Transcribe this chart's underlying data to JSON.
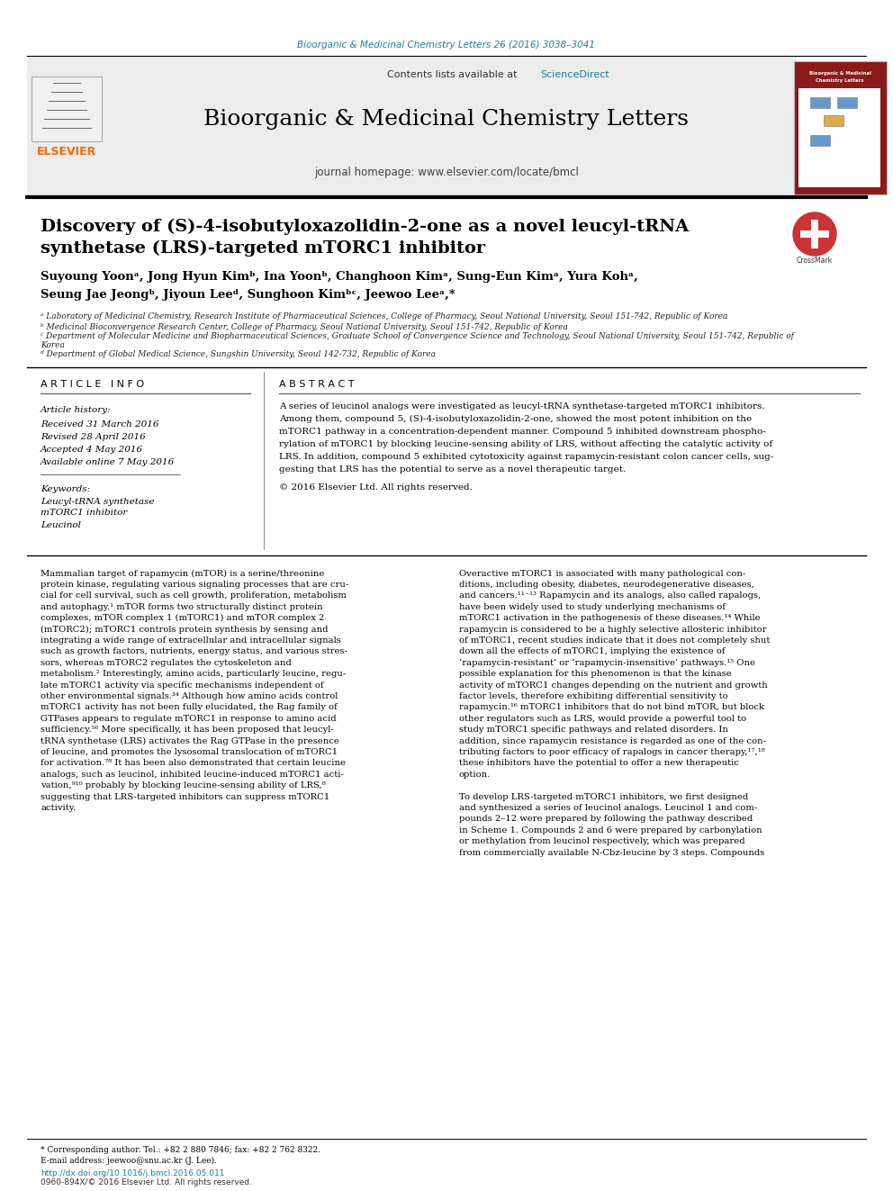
{
  "page_bg": "#ffffff",
  "top_journal_line": "Bioorganic & Medicinal Chemistry Letters 26 (2016) 3038–3041",
  "top_line_color": "#1a7fa0",
  "header_bg": "#ececec",
  "contents_line": "Contents lists available at",
  "sciencedirect_text": "ScienceDirect",
  "sciencedirect_color": "#1a7fa0",
  "journal_title": "Bioorganic & Medicinal Chemistry Letters",
  "journal_homepage": "journal homepage: www.elsevier.com/locate/bmcl",
  "elsevier_color": "#ff6600",
  "elsevier_text": "ELSEVIER",
  "paper_title_line1": "Discovery of (S)-4-isobutyloxazolidin-2-one as a novel leucyl-tRNA",
  "paper_title_line2": "synthetase (LRS)-targeted mTORC1 inhibitor",
  "authors_line1": "Suyoung Yoonᵃ, Jong Hyun Kimᵇ, Ina Yoonᵇ, Changhoon Kimᵃ, Sung-Eun Kimᵃ, Yura Kohᵃ,",
  "authors_line2": "Seung Jae Jeongᵇ, Jiyoun Leeᵈ, Sunghoon Kimᵇᶜ, Jeewoo Leeᵃ,*",
  "affil_a": "ᵃ Laboratory of Medicinal Chemistry, Research Institute of Pharmaceutical Sciences, College of Pharmacy, Seoul National University, Seoul 151-742, Republic of Korea",
  "affil_b": "ᵇ Medicinal Bioconvergence Research Center, College of Pharmacy, Seoul National University, Seoul 151-742, Republic of Korea",
  "affil_c1": "ᶜ Department of Molecular Medicine and Biopharmaceutical Sciences, Graduate School of Convergence Science and Technology, Seoul National University, Seoul 151-742, Republic of",
  "affil_c2": "Korea",
  "affil_d": "ᵈ Department of Global Medical Science, Sungshin University, Seoul 142-732, Republic of Korea",
  "article_info_title": "A R T I C L E   I N F O",
  "abstract_title": "A B S T R A C T",
  "article_history_label": "Article history:",
  "received": "Received 31 March 2016",
  "revised": "Revised 28 April 2016",
  "accepted": "Accepted 4 May 2016",
  "available": "Available online 7 May 2016",
  "keywords_label": "Keywords:",
  "keyword1": "Leucyl-tRNA synthetase",
  "keyword2": "mTORC1 inhibitor",
  "keyword3": "Leucinol",
  "abstract_lines": [
    "A series of leucinol analogs were investigated as leucyl-tRNA synthetase-targeted mTORC1 inhibitors.",
    "Among them, compound 5, (S)-4-isobutyloxazolidin-2-one, showed the most potent inhibition on the",
    "mTORC1 pathway in a concentration-dependent manner. Compound 5 inhibited downstream phospho-",
    "rylation of mTORC1 by blocking leucine-sensing ability of LRS, without affecting the catalytic activity of",
    "LRS. In addition, compound 5 exhibited cytotoxicity against rapamycin-resistant colon cancer cells, sug-",
    "gesting that LRS has the potential to serve as a novel therapeutic target."
  ],
  "copyright": "© 2016 Elsevier Ltd. All rights reserved.",
  "col1_lines": [
    "Mammalian target of rapamycin (mTOR) is a serine/threonine",
    "protein kinase, regulating various signaling processes that are cru-",
    "cial for cell survival, such as cell growth, proliferation, metabolism",
    "and autophagy.¹ mTOR forms two structurally distinct protein",
    "complexes, mTOR complex 1 (mTORC1) and mTOR complex 2",
    "(mTORC2); mTORC1 controls protein synthesis by sensing and",
    "integrating a wide range of extracellular and intracellular signals",
    "such as growth factors, nutrients, energy status, and various stres-",
    "sors, whereas mTORC2 regulates the cytoskeleton and",
    "metabolism.² Interestingly, amino acids, particularly leucine, regu-",
    "late mTORC1 activity via specific mechanisms independent of",
    "other environmental signals.³⁴ Although how amino acids control",
    "mTORC1 activity has not been fully elucidated, the Rag family of",
    "GTPases appears to regulate mTORC1 in response to amino acid",
    "sufficiency.⁵⁶ More specifically, it has been proposed that leucyl-",
    "tRNA synthetase (LRS) activates the Rag GTPase in the presence",
    "of leucine, and promotes the lysosomal translocation of mTORC1",
    "for activation.⁷⁸ It has been also demonstrated that certain leucine",
    "analogs, such as leucinol, inhibited leucine-induced mTORC1 acti-",
    "vation,⁹¹⁰ probably by blocking leucine-sensing ability of LRS,⁸",
    "suggesting that LRS-targeted inhibitors can suppress mTORC1",
    "activity."
  ],
  "col2_lines": [
    "Overactive mTORC1 is associated with many pathological con-",
    "ditions, including obesity, diabetes, neurodegenerative diseases,",
    "and cancers.¹¹⁻¹³ Rapamycin and its analogs, also called rapalogs,",
    "have been widely used to study underlying mechanisms of",
    "mTORC1 activation in the pathogenesis of these diseases.¹⁴ While",
    "rapamycin is considered to be a highly selective allosteric inhibitor",
    "of mTORC1, recent studies indicate that it does not completely shut",
    "down all the effects of mTORC1, implying the existence of",
    "‘rapamycin-resistant’ or ‘rapamycin-insensitive’ pathways.¹⁵ One",
    "possible explanation for this phenomenon is that the kinase",
    "activity of mTORC1 changes depending on the nutrient and growth",
    "factor levels, therefore exhibiting differential sensitivity to",
    "rapamycin.¹⁶ mTORC1 inhibitors that do not bind mTOR, but block",
    "other regulators such as LRS, would provide a powerful tool to",
    "study mTORC1 specific pathways and related disorders. In",
    "addition, since rapamycin resistance is regarded as one of the con-",
    "tributing factors to poor efficacy of rapalogs in cancer therapy,¹⁷,¹⁸",
    "these inhibitors have the potential to offer a new therapeutic",
    "option.",
    "",
    "To develop LRS-targeted mTORC1 inhibitors, we first designed",
    "and synthesized a series of leucinol analogs. Leucinol 1 and com-",
    "pounds 2–12 were prepared by following the pathway described",
    "in Scheme 1. Compounds 2 and 6 were prepared by carbonylation",
    "or methylation from leucinol respectively, which was prepared",
    "from commercially available N-Cbz-leucine by 3 steps. Compounds"
  ],
  "footnote_star": "* Corresponding author. Tel.: +82 2 880 7846; fax: +82 2 762 8322.",
  "footnote_email": "E-mail address: jeewoo@snu.ac.kr (J. Lee).",
  "footer_doi": "http://dx.doi.org/10.1016/j.bmcl.2016.05.011",
  "footer_issn": "0960-894X/© 2016 Elsevier Ltd. All rights reserved.",
  "divider_color": "#000000",
  "separator_color": "#555555"
}
